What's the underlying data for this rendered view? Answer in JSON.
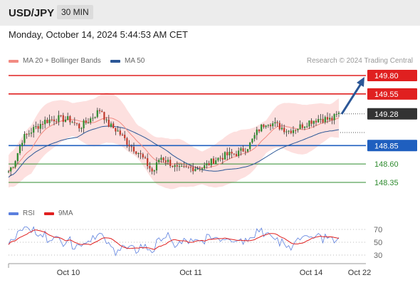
{
  "header": {
    "symbol": "USD/JPY",
    "interval": "30 MIN"
  },
  "datetime": "Monday, October 14, 2024 5:44:53 AM CET",
  "legend": {
    "ma20": {
      "label": "MA 20 + Bollinger Bands",
      "color": "#f28b82"
    },
    "ma50": {
      "label": "MA 50",
      "color": "#2b5797"
    }
  },
  "credit": "Research © 2024 Trading Central",
  "rsi_legend": {
    "rsi": {
      "label": "RSI",
      "color": "#5b7fde"
    },
    "ma9": {
      "label": "9MA",
      "color": "#e02020"
    }
  },
  "x_labels": [
    "Oct 10",
    "Oct 11",
    "Oct 14",
    "Oct 22"
  ],
  "rsi_ticks": [
    "70",
    "50",
    "30"
  ],
  "levels": [
    {
      "value": 149.8,
      "label": "149.80",
      "type": "resistance",
      "color": "#e02020"
    },
    {
      "value": 149.55,
      "label": "149.55",
      "type": "resistance",
      "color": "#e02020"
    },
    {
      "value": 149.28,
      "label": "149.28",
      "type": "current",
      "color": "#333333"
    },
    {
      "value": 148.85,
      "label": "148.85",
      "type": "pivot",
      "color": "#1f5fbf"
    },
    {
      "value": 148.6,
      "label": "148.60",
      "type": "support",
      "color": "#2e8b2e"
    },
    {
      "value": 148.35,
      "label": "148.35",
      "type": "support",
      "color": "#2e8b2e"
    }
  ],
  "chart_data": {
    "type": "line",
    "title": "USD/JPY 30 MIN",
    "xlabel": "",
    "ylabel": "",
    "x": [
      "Oct 10",
      "Oct 11",
      "Oct 14"
    ],
    "price_close_approx": [
      148.55,
      148.95,
      149.2,
      149.35,
      149.1,
      148.9,
      148.45,
      148.8,
      148.55,
      148.6,
      148.8,
      149.05,
      149.15,
      149.25,
      149.28
    ],
    "rsi_range": [
      30,
      70
    ],
    "current_price": 149.28,
    "target": 149.8
  }
}
